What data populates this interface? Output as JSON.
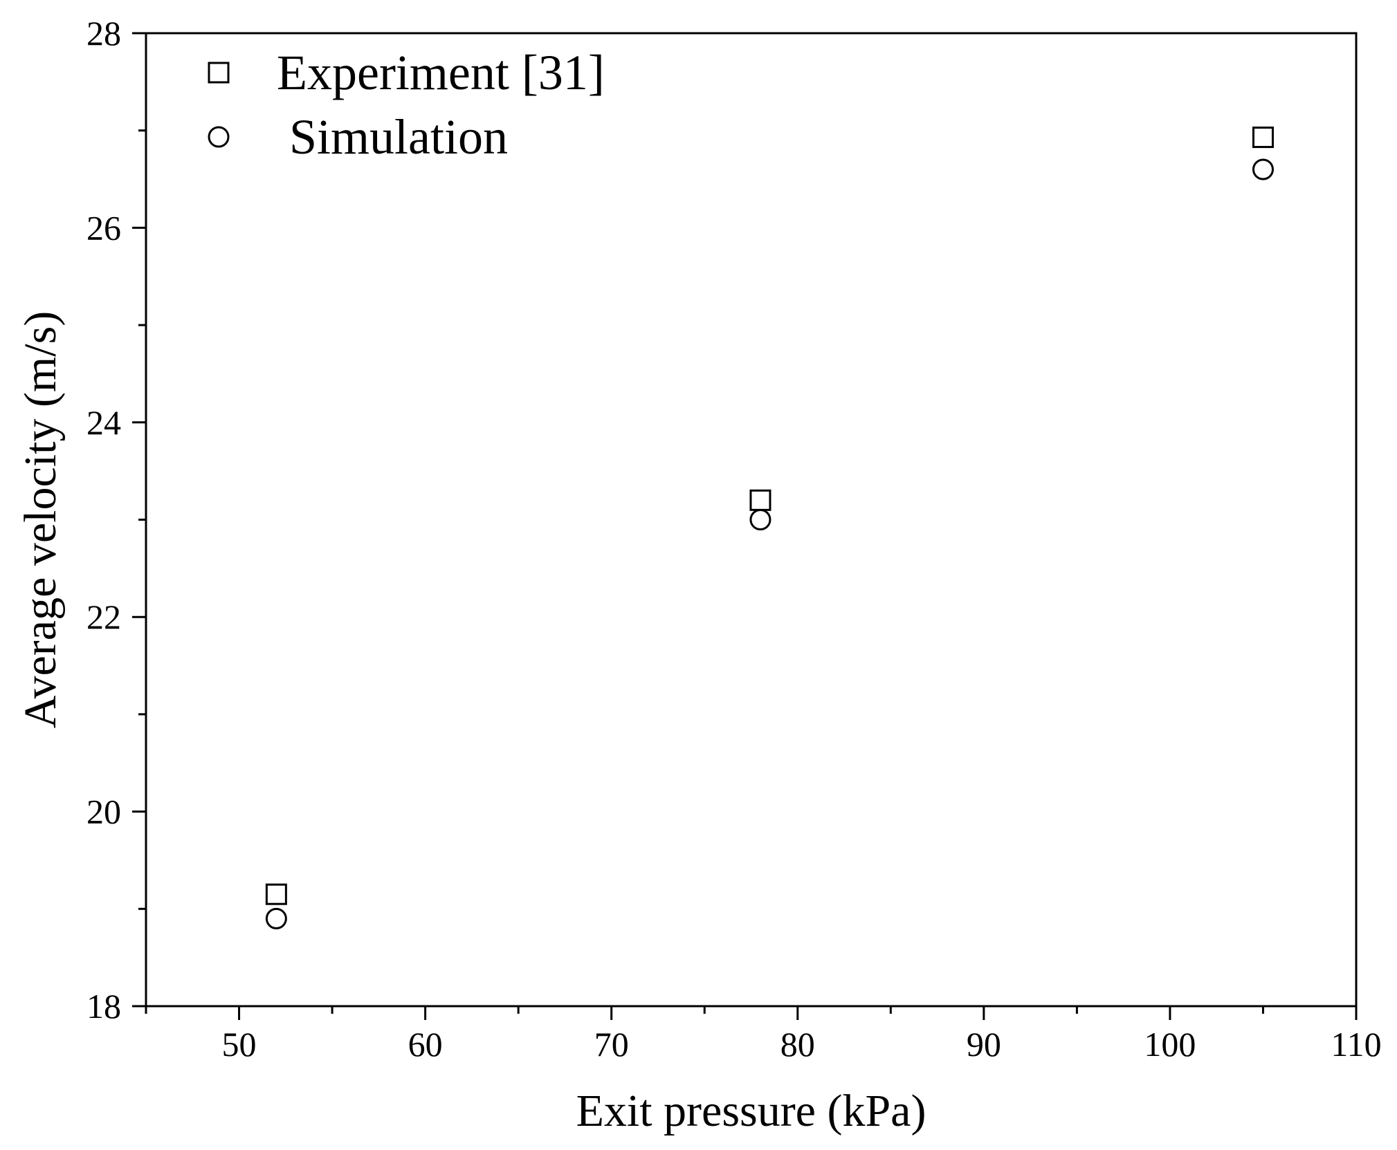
{
  "chart_data": {
    "type": "scatter",
    "title": "",
    "xlabel": "Exit pressure (kPa)",
    "ylabel": "Average velocity (m/s)",
    "xlim": [
      45,
      110
    ],
    "ylim": [
      18,
      28
    ],
    "x_ticks": [
      50,
      60,
      70,
      80,
      90,
      100,
      110
    ],
    "y_ticks": [
      18,
      20,
      22,
      24,
      26,
      28
    ],
    "grid": false,
    "legend_position": "top-left",
    "series": [
      {
        "name": "Experiment [31]",
        "marker": "square",
        "x": [
          52,
          78,
          105
        ],
        "y": [
          19.15,
          23.2,
          26.93
        ]
      },
      {
        "name": "Simulation",
        "marker": "circle",
        "x": [
          52,
          78,
          105
        ],
        "y": [
          18.9,
          23.0,
          26.6
        ]
      }
    ]
  }
}
